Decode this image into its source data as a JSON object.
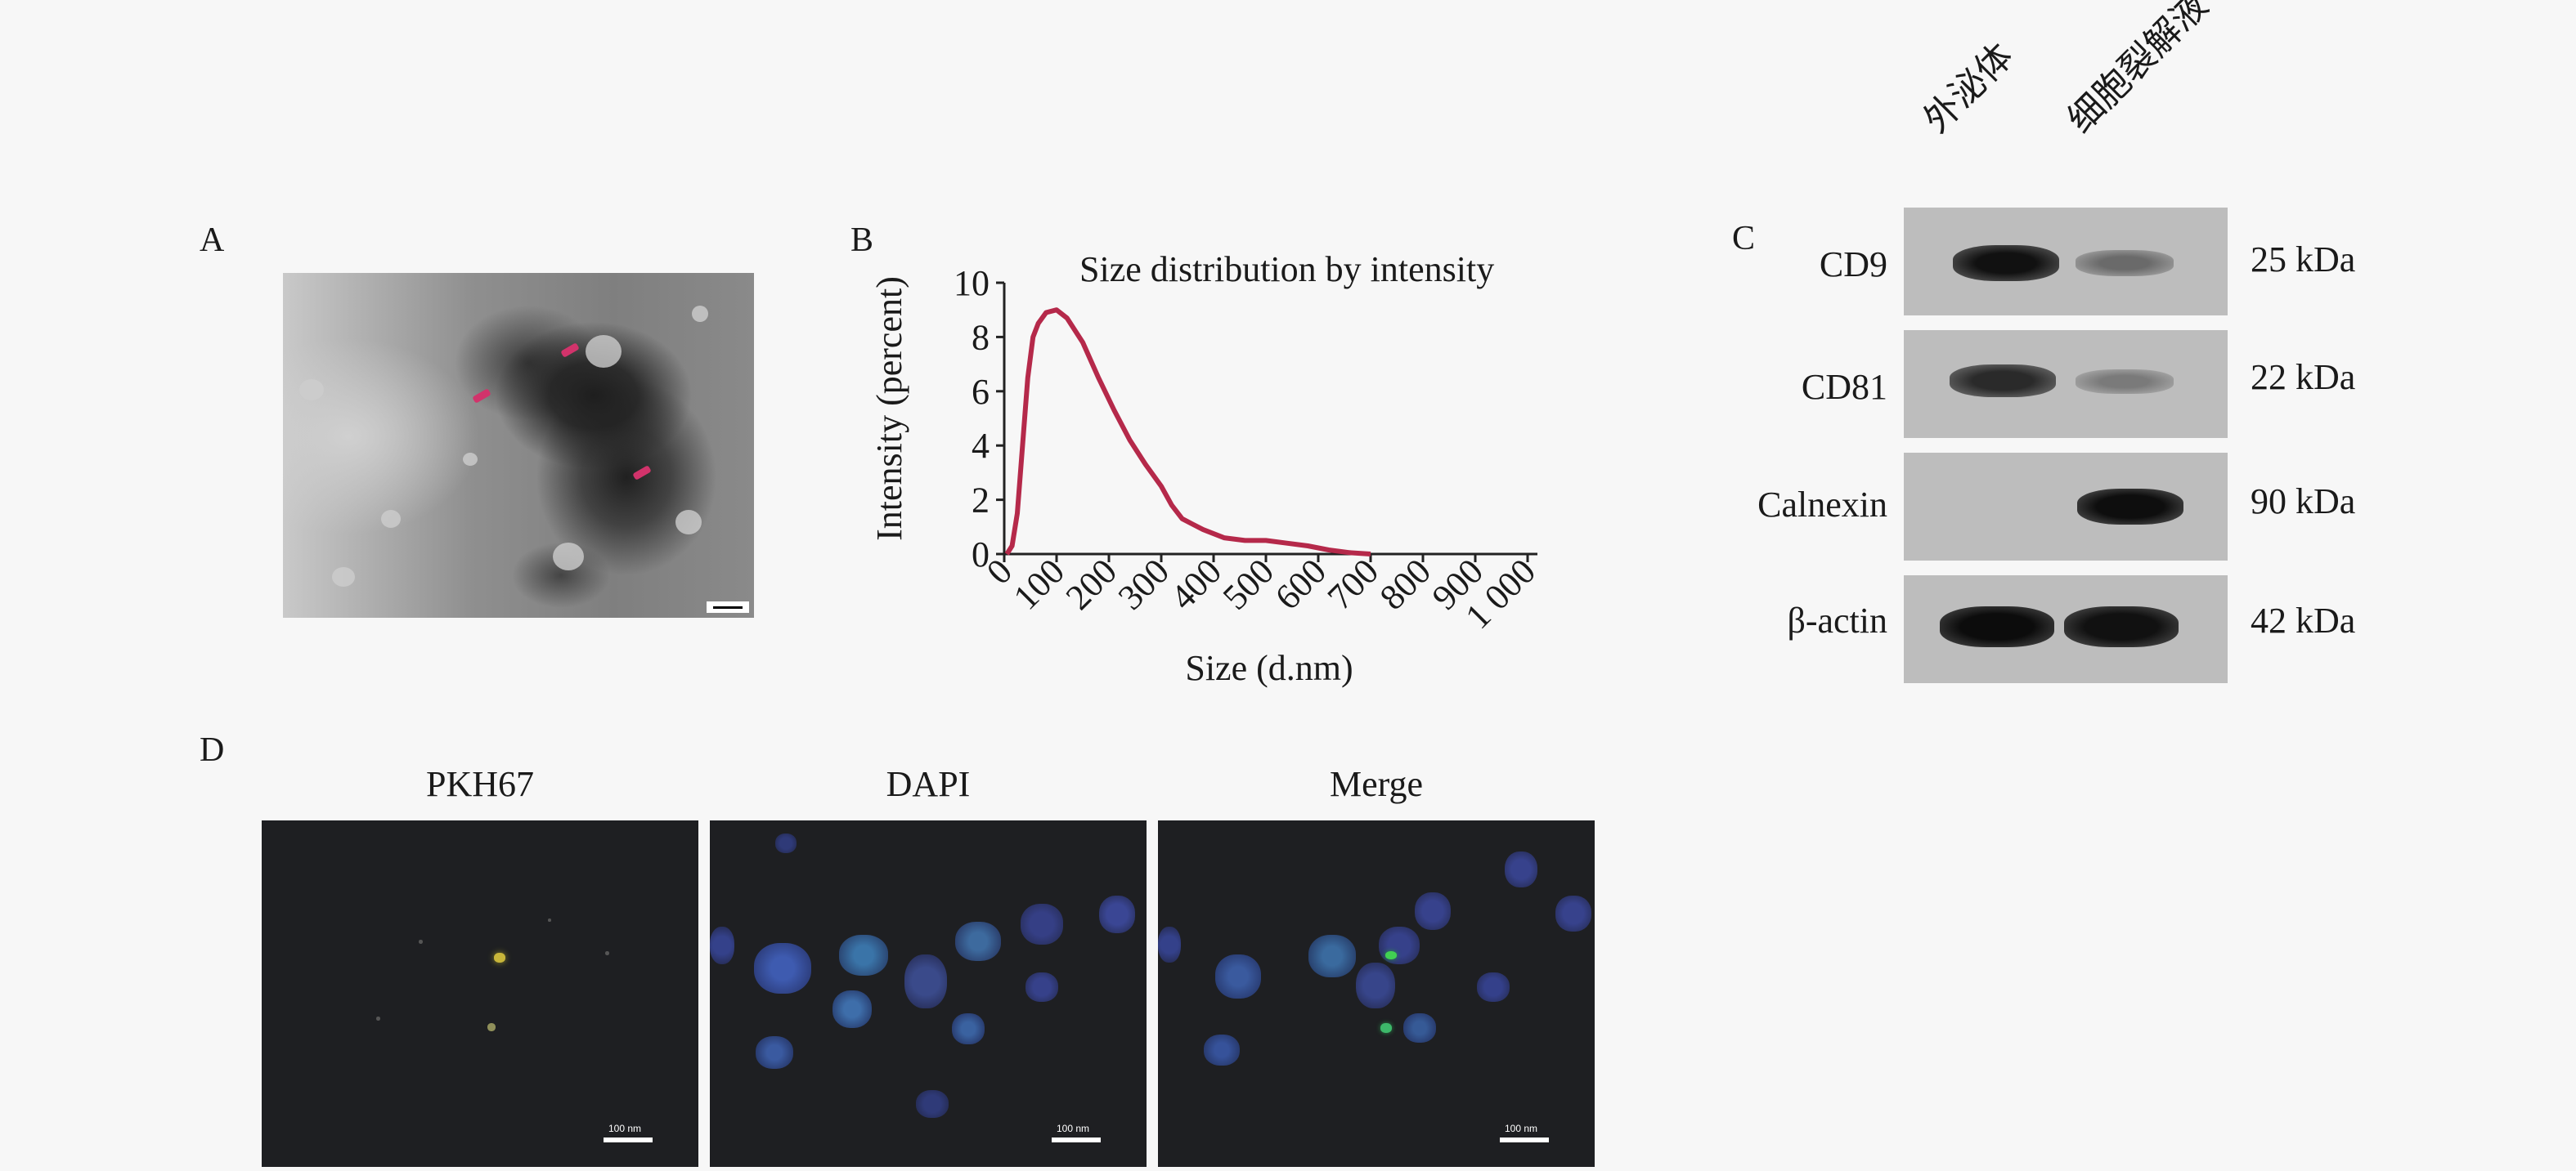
{
  "panels": {
    "a": {
      "letter": "A"
    },
    "b": {
      "letter": "B"
    },
    "c": {
      "letter": "C"
    },
    "d": {
      "letter": "D"
    }
  },
  "chart_data": {
    "type": "line",
    "title": "Size distribution by intensity",
    "xlabel": "Size (d.nm)",
    "ylabel": "Intensity (percent)",
    "xlim": [
      0,
      1000
    ],
    "ylim": [
      0,
      10
    ],
    "xticks": [
      "0",
      "100",
      "200",
      "300",
      "400",
      "500",
      "600",
      "700",
      "800",
      "900",
      "1 000"
    ],
    "yticks": [
      "0",
      "2",
      "4",
      "6",
      "8",
      "10"
    ],
    "x": [
      5,
      15,
      25,
      35,
      45,
      55,
      65,
      80,
      100,
      120,
      150,
      180,
      210,
      240,
      270,
      300,
      320,
      340,
      360,
      380,
      420,
      460,
      500,
      540,
      580,
      620,
      660,
      700
    ],
    "y": [
      0.0,
      0.3,
      1.5,
      4.0,
      6.5,
      8.0,
      8.5,
      8.9,
      9.0,
      8.7,
      7.8,
      6.5,
      5.3,
      4.2,
      3.3,
      2.5,
      1.8,
      1.3,
      1.1,
      0.9,
      0.6,
      0.5,
      0.5,
      0.4,
      0.3,
      0.15,
      0.05,
      0.0
    ],
    "line_color": "#b5294a",
    "grid": false
  },
  "western_blot": {
    "columns": [
      "外泌体",
      "细胞裂解液"
    ],
    "rows": [
      {
        "label": "CD9",
        "kda": "25 kDa"
      },
      {
        "label": "CD81",
        "kda": "22 kDa"
      },
      {
        "label": "Calnexin",
        "kda": "90 kDa"
      },
      {
        "label": "β-actin",
        "kda": "42 kDa"
      }
    ]
  },
  "microscopy": {
    "titles": [
      "PKH67",
      "DAPI",
      "Merge"
    ],
    "scale_label": "100 nm"
  }
}
